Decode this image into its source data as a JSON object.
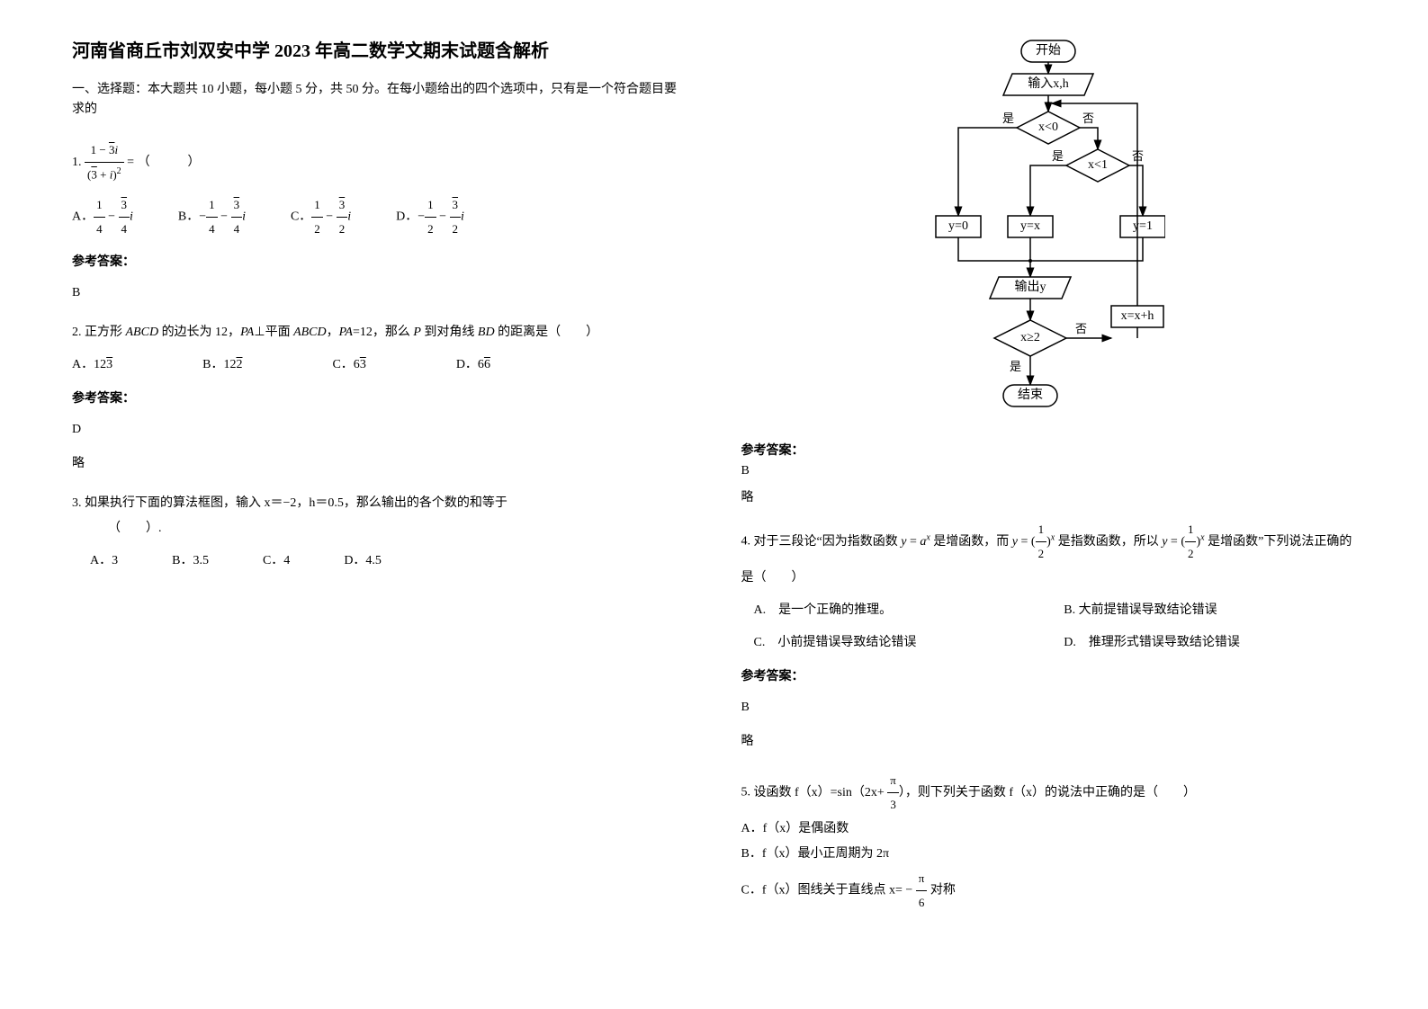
{
  "title": "河南省商丘市刘双安中学 2023 年高二数学文期末试题含解析",
  "section_intro": "一、选择题：本大题共 10 小题，每小题 5 分，共 50 分。在每小题给出的四个选项中，只有是一个符合题目要求的",
  "answer_label": "参考答案：",
  "omit": "略",
  "q1": {
    "num": "1.",
    "formula_main_html": "<span class='frac'><span class='num'>1 − <span class='sqrt'>3</span><i>i</i></span><span class='den'>(<span class='sqrt'>3</span> + <i>i</i>)<sup>2</sup></span></span> =",
    "blank": "（　　　）",
    "optA_html": "A．<span class='frac'><span class='num'>1</span><span class='den'>4</span></span> − <span class='frac'><span class='num'><span class='sqrt'>3</span></span><span class='den'>4</span></span><i>i</i>",
    "optB_html": "B．−<span class='frac'><span class='num'>1</span><span class='den'>4</span></span> − <span class='frac'><span class='num'><span class='sqrt'>3</span></span><span class='den'>4</span></span><i>i</i>",
    "optC_html": "C．<span class='frac'><span class='num'>1</span><span class='den'>2</span></span> − <span class='frac'><span class='num'><span class='sqrt'>3</span></span><span class='den'>2</span></span><i>i</i>",
    "optD_html": "D．−<span class='frac'><span class='num'>1</span><span class='den'>2</span></span> − <span class='frac'><span class='num'><span class='sqrt'>3</span></span><span class='den'>2</span></span><i>i</i>",
    "answer": "B"
  },
  "q2": {
    "num": "2.",
    "text_html": "正方形 <i>ABCD</i> 的边长为 12，<i>PA</i>⊥平面 <i>ABCD</i>，<i>PA</i>=12，那么 <i>P</i> 到对角线 <i>BD</i> 的距离是（　　）",
    "optA_html": "A．12<span class='sqrt'>3</span>",
    "optB_html": "B．12<span class='sqrt'>2</span>",
    "optC_html": "C．6<span class='sqrt'>3</span>",
    "optD_html": "D．6<span class='sqrt'>6</span>",
    "answer": "D"
  },
  "q3": {
    "num": "3.",
    "text": "如果执行下面的算法框图，输入 x＝−2，h＝0.5，那么输出的各个数的和等于",
    "blank": "（　　）.",
    "optA": "A．3",
    "optB": "B．3.5",
    "optC": "C．4",
    "optD": "D．4.5",
    "answer": "B"
  },
  "flowchart": {
    "start": "开始",
    "input": "输入x,h",
    "cond1": "x<0",
    "cond2": "x<1",
    "y0": "y=0",
    "yx": "y=x",
    "y1": "y=1",
    "output": "输出y",
    "xh": "x=x+h",
    "cond3": "x≥2",
    "end": "结束",
    "yes": "是",
    "no": "否"
  },
  "q4": {
    "num": "4.",
    "text_html": "对于三段论“因为指数函数 <i>y</i> = <i>a<sup>x</sup></i> 是增函数，而 <i>y</i> = (<span class='frac'><span class='num'>1</span><span class='den'>2</span></span>)<sup><i>x</i></sup> 是指数函数，所以 <i>y</i> = (<span class='frac'><span class='num'>1</span><span class='den'>2</span></span>)<sup><i>x</i></sup> 是增函数”下列说法正确的是（　　）",
    "optA": "A.　是一个正确的推理。",
    "optB": "B. 大前提错误导致结论错误",
    "optC": "C.　小前提错误导致结论错误",
    "optD": "D.　推理形式错误导致结论错误",
    "answer": "B"
  },
  "q5": {
    "num": "5.",
    "text_html": "设函数 f（x）=sin（2x+ <span class='frac'><span class='num'>π</span><span class='den'>3</span></span>），则下列关于函数 f（x）的说法中正确的是（　　）",
    "optA": "A．f（x）是偶函数",
    "optB": "B．f（x）最小正周期为 2π",
    "optC_html": "C．f（x）图线关于直线点 x= − <span class='frac'><span class='num'>π</span><span class='den'>6</span></span> 对称"
  }
}
